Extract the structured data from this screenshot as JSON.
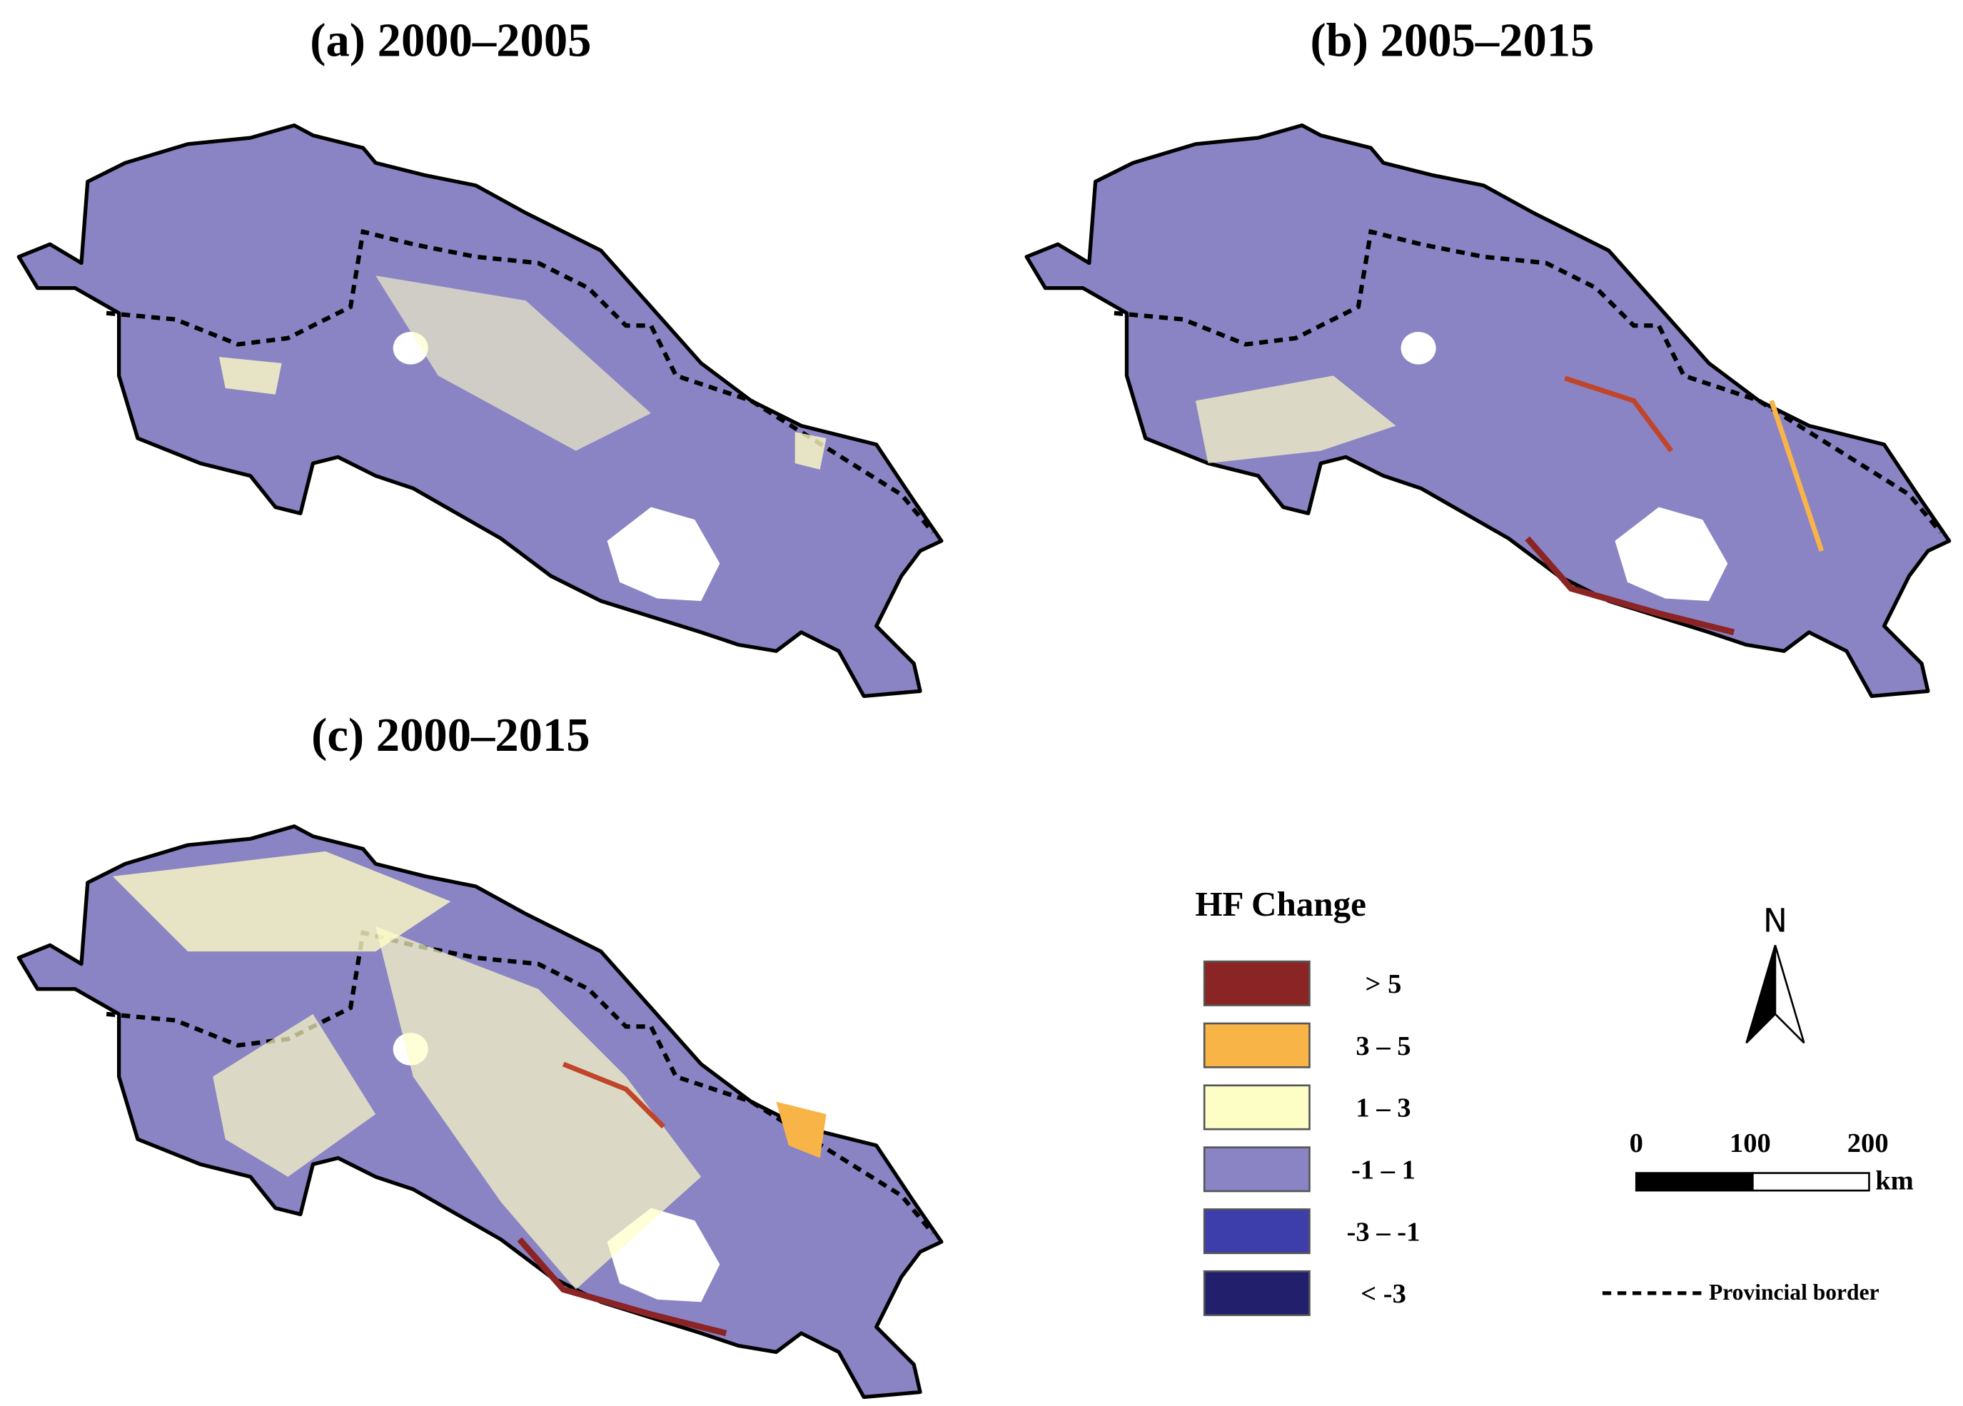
{
  "panels": [
    {
      "title": "(a) 2000–2005"
    },
    {
      "title": "(b) 2005–2015"
    },
    {
      "title": "(c) 2000–2015"
    }
  ],
  "legend": {
    "title": "HF Change",
    "items": [
      {
        "label": "> 5",
        "color": "#8b2424"
      },
      {
        "label": "3 – 5",
        "color": "#f8b447"
      },
      {
        "label": "1 – 3",
        "color": "#fdfdc6"
      },
      {
        "label": "-1 – 1",
        "color": "#8b84c4"
      },
      {
        "label": "-3 – -1",
        "color": "#3d3dab"
      },
      {
        "label": "< -3",
        "color": "#22206c"
      }
    ]
  },
  "north_arrow": {
    "label": "N"
  },
  "scale_bar": {
    "ticks": [
      "0",
      "100",
      "200"
    ],
    "unit": "km"
  },
  "border_legend": {
    "label": "Provincial border"
  }
}
